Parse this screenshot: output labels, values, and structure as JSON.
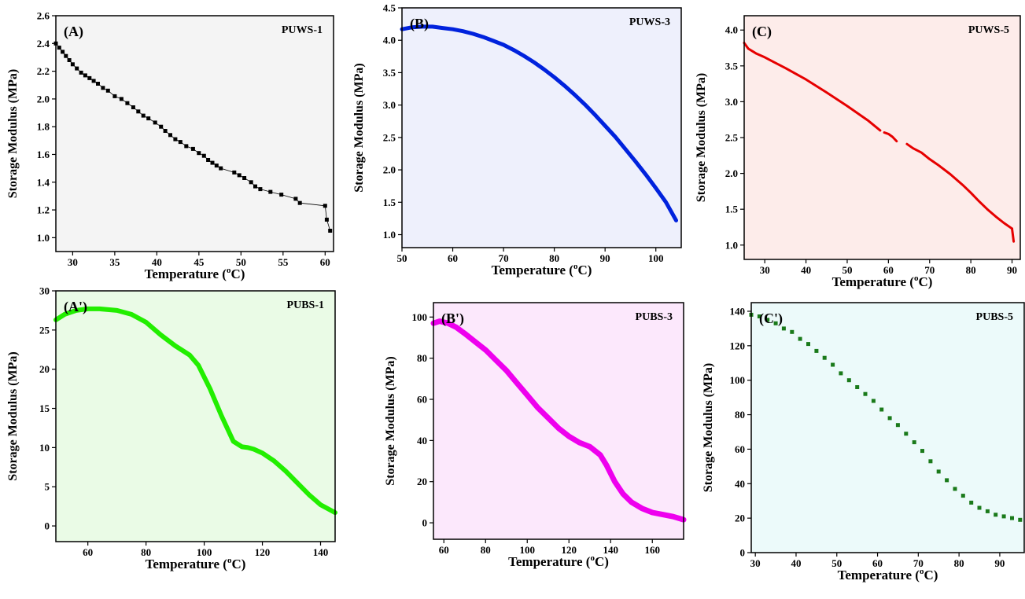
{
  "figure_caption": "",
  "chart_data": [
    {
      "id": "A",
      "type": "line",
      "panel_label": "(A)",
      "series_name": "PUWS-1",
      "xlabel": "Temperature (°C)",
      "ylabel": "Storage Modulus (MPa)",
      "xlim": [
        28,
        61
      ],
      "ylim": [
        0.9,
        2.6
      ],
      "xticks": [
        30,
        35,
        40,
        45,
        50,
        55,
        60
      ],
      "yticks": [
        1.0,
        1.2,
        1.4,
        1.6,
        1.8,
        2.0,
        2.2,
        2.4,
        2.6
      ],
      "ytick_decimals": 1,
      "background": "#f4f4f4",
      "color": "#000000",
      "marker": "square",
      "marker_size": 5,
      "line_width": 0.8,
      "series": [
        {
          "name": "PUWS-1",
          "x": [
            28.0,
            28.4,
            28.8,
            29.2,
            29.6,
            30.0,
            30.5,
            31.0,
            31.5,
            32.0,
            32.5,
            33.0,
            33.6,
            34.2,
            35.0,
            35.8,
            36.5,
            37.2,
            37.8,
            38.4,
            39.0,
            39.8,
            40.5,
            41.0,
            41.6,
            42.2,
            42.8,
            43.5,
            44.3,
            45.0,
            45.6,
            46.1,
            46.6,
            47.1,
            47.6,
            49.2,
            49.8,
            50.4,
            51.2,
            51.7,
            52.3,
            53.5,
            54.8,
            56.5,
            57.0,
            60.0,
            60.2,
            60.6
          ],
          "y": [
            2.4,
            2.37,
            2.34,
            2.31,
            2.28,
            2.25,
            2.22,
            2.19,
            2.17,
            2.15,
            2.13,
            2.11,
            2.08,
            2.06,
            2.02,
            2.0,
            1.97,
            1.94,
            1.91,
            1.88,
            1.86,
            1.83,
            1.8,
            1.77,
            1.74,
            1.71,
            1.69,
            1.66,
            1.64,
            1.61,
            1.59,
            1.56,
            1.54,
            1.52,
            1.5,
            1.47,
            1.45,
            1.43,
            1.4,
            1.37,
            1.35,
            1.33,
            1.31,
            1.28,
            1.25,
            1.23,
            1.13,
            1.05
          ]
        }
      ]
    },
    {
      "id": "B",
      "type": "line",
      "panel_label": "(B)",
      "series_name": "PUWS-3",
      "xlabel": "Temperature (°C)",
      "ylabel": "Storage Modulus (MPa)",
      "xlim": [
        50,
        105
      ],
      "ylim": [
        0.8,
        4.5
      ],
      "xticks": [
        50,
        60,
        70,
        80,
        90,
        100
      ],
      "yticks": [
        1.0,
        1.5,
        2.0,
        2.5,
        3.0,
        3.5,
        4.0,
        4.5
      ],
      "ytick_decimals": 1,
      "background": "#eef0fc",
      "color": "#0022dd",
      "marker": "none",
      "line_width": 5,
      "series": [
        {
          "name": "PUWS-3",
          "x": [
            50,
            52,
            54,
            56,
            58,
            60,
            62,
            64,
            66,
            68,
            70,
            72,
            74,
            76,
            78,
            80,
            82,
            84,
            86,
            88,
            90,
            92,
            94,
            96,
            98,
            100,
            102,
            104
          ],
          "y": [
            4.17,
            4.2,
            4.21,
            4.21,
            4.19,
            4.17,
            4.14,
            4.1,
            4.05,
            3.99,
            3.93,
            3.85,
            3.76,
            3.66,
            3.55,
            3.43,
            3.3,
            3.16,
            3.01,
            2.85,
            2.68,
            2.51,
            2.32,
            2.13,
            1.93,
            1.72,
            1.5,
            1.22
          ]
        }
      ]
    },
    {
      "id": "C",
      "type": "line",
      "panel_label": "(C)",
      "series_name": "PUWS-5",
      "xlabel": "Temperature (°C)",
      "ylabel": "Storage Modulus (MPa)",
      "xlim": [
        25,
        92
      ],
      "ylim": [
        0.8,
        4.2
      ],
      "xticks": [
        30,
        40,
        50,
        60,
        70,
        80,
        90
      ],
      "yticks": [
        1.0,
        1.5,
        2.0,
        2.5,
        3.0,
        3.5,
        4.0
      ],
      "ytick_decimals": 1,
      "background": "#fdecea",
      "color": "#e60000",
      "marker": "none",
      "line_width": 3,
      "series": [
        {
          "name": "PUWS-5",
          "x": [
            25,
            26,
            28,
            30,
            32,
            35,
            40,
            45,
            50,
            55,
            58
          ],
          "y": [
            3.82,
            3.74,
            3.67,
            3.62,
            3.56,
            3.47,
            3.31,
            3.13,
            2.94,
            2.74,
            2.6
          ]
        },
        {
          "name": "PUWS-5",
          "x": [
            59,
            60,
            61,
            62
          ],
          "y": [
            2.57,
            2.55,
            2.51,
            2.45
          ]
        },
        {
          "name": "PUWS-5",
          "x": [
            64.5,
            66,
            68,
            70,
            72,
            75,
            78,
            80,
            82,
            84,
            86,
            88,
            90
          ],
          "y": [
            2.41,
            2.35,
            2.29,
            2.2,
            2.12,
            1.99,
            1.84,
            1.73,
            1.61,
            1.5,
            1.4,
            1.31,
            1.23
          ]
        },
        {
          "name": "PUWS-5",
          "x": [
            90,
            90.4
          ],
          "y": [
            1.23,
            1.05
          ]
        }
      ]
    },
    {
      "id": "A2",
      "type": "line",
      "panel_label": "(A')",
      "series_name": "PUBS-1",
      "xlabel": "Temperature (°C)",
      "ylabel": "Storage Modulus (MPa)",
      "xlim": [
        49,
        145
      ],
      "ylim": [
        -2,
        30
      ],
      "xticks": [
        60,
        80,
        100,
        120,
        140
      ],
      "yticks": [
        0,
        5,
        10,
        15,
        20,
        25,
        30
      ],
      "ytick_decimals": 0,
      "background": "#eafbe6",
      "color": "#22ee00",
      "marker": "none",
      "line_width": 6,
      "series": [
        {
          "name": "PUBS-1",
          "x": [
            49,
            52,
            56,
            60,
            64,
            70,
            75,
            80,
            85,
            90,
            95,
            98,
            102,
            106,
            110,
            113,
            115,
            117,
            120,
            124,
            128,
            132,
            136,
            140,
            145
          ],
          "y": [
            26.3,
            27.0,
            27.5,
            27.7,
            27.7,
            27.5,
            27.0,
            26.0,
            24.4,
            23.0,
            21.8,
            20.5,
            17.5,
            14.0,
            10.8,
            10.1,
            10.0,
            9.8,
            9.3,
            8.3,
            7.0,
            5.5,
            4.0,
            2.7,
            1.7
          ]
        }
      ]
    },
    {
      "id": "B2",
      "type": "line",
      "panel_label": "(B')",
      "series_name": "PUBS-3",
      "xlabel": "Temperature (°C)",
      "ylabel": "Storage Modulus (MPa)",
      "xlim": [
        55,
        175
      ],
      "ylim": [
        -8,
        107
      ],
      "xticks": [
        60,
        80,
        100,
        120,
        140,
        160
      ],
      "yticks": [
        0,
        20,
        40,
        60,
        80,
        100
      ],
      "ytick_decimals": 0,
      "background": "#fce8fc",
      "color": "#ee00ee",
      "marker": "none",
      "line_width": 7,
      "series": [
        {
          "name": "PUBS-3",
          "x": [
            55,
            58,
            62,
            66,
            70,
            75,
            80,
            85,
            90,
            95,
            100,
            105,
            110,
            115,
            120,
            125,
            130,
            135,
            138,
            142,
            146,
            150,
            155,
            160,
            165,
            170,
            175
          ],
          "y": [
            97,
            98,
            97,
            95,
            92,
            88,
            84,
            79,
            74,
            68,
            62,
            56,
            51,
            46,
            42,
            39,
            37,
            33,
            28,
            20,
            14,
            10,
            7,
            5,
            4,
            3,
            1.5
          ]
        }
      ]
    },
    {
      "id": "C2",
      "type": "scatter",
      "panel_label": "(C')",
      "series_name": "PUBS-5",
      "xlabel": "Temperature (°C)",
      "ylabel": "Storage Modulus (MPa)",
      "xlim": [
        29,
        96
      ],
      "ylim": [
        0,
        145
      ],
      "xticks": [
        30,
        40,
        50,
        60,
        70,
        80,
        90
      ],
      "yticks": [
        0,
        20,
        40,
        60,
        80,
        100,
        120,
        140
      ],
      "ytick_decimals": 0,
      "background": "#ecfafa",
      "color": "#1a7a1a",
      "marker": "square",
      "marker_size": 5,
      "line_width": 0,
      "series": [
        {
          "name": "PUBS-5",
          "x": [
            29,
            31,
            33,
            35,
            37,
            39,
            41,
            43,
            45,
            47,
            49,
            51,
            53,
            55,
            57,
            59,
            61,
            63,
            65,
            67,
            69,
            71,
            73,
            75,
            77,
            79,
            81,
            83,
            85,
            87,
            89,
            91,
            93,
            95
          ],
          "y": [
            138,
            137,
            135,
            133,
            130,
            128,
            124,
            121,
            117,
            113,
            109,
            104,
            100,
            96,
            92,
            88,
            83,
            78,
            74,
            69,
            64,
            59,
            53,
            47,
            42,
            37,
            33,
            29,
            26,
            24,
            22,
            21,
            20,
            19
          ]
        }
      ]
    }
  ]
}
